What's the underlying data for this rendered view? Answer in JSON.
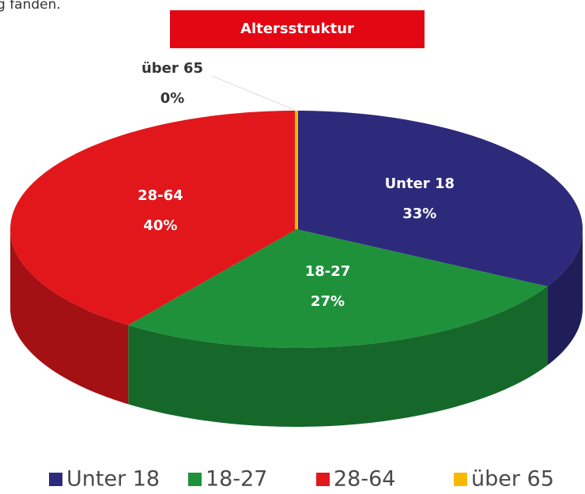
{
  "context_text": "g fanden.",
  "chart_data": {
    "type": "pie",
    "title": "Altersstruktur",
    "categories": [
      "Unter 18",
      "18-27",
      "28-64",
      "über 65"
    ],
    "values": [
      33,
      27,
      40,
      0
    ],
    "value_labels": [
      "33%",
      "27%",
      "40%",
      "0%"
    ],
    "colors": [
      "#2d2a7c",
      "#1f913b",
      "#e2171c",
      "#f7b900"
    ],
    "legend": "bottom"
  }
}
